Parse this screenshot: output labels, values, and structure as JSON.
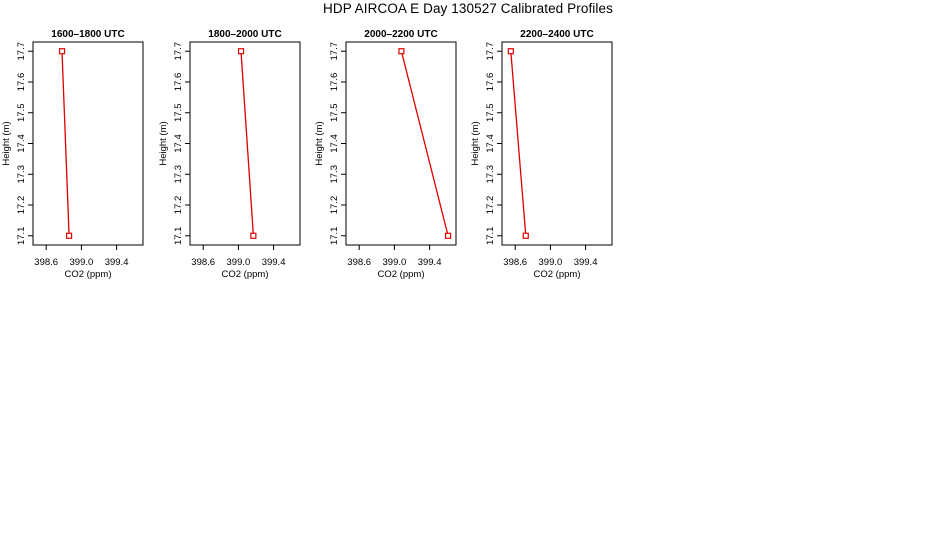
{
  "page": {
    "title": "HDP AIRCOA E  Day 130527  Calibrated Profiles"
  },
  "colors": {
    "series": "#dd0000",
    "axis": "#000000"
  },
  "chart_data": [
    {
      "type": "line",
      "title": "1600–1800 UTC",
      "xlabel": "CO2 (ppm)",
      "ylabel": "Height (m)",
      "xlim": [
        398.45,
        399.7
      ],
      "ylim": [
        17.07,
        17.73
      ],
      "xticks": [
        "398.6",
        "399.0",
        "399.4"
      ],
      "yticks": [
        "17.1",
        "17.2",
        "17.3",
        "17.4",
        "17.5",
        "17.6",
        "17.7"
      ],
      "points": [
        {
          "x": 398.78,
          "y": 17.7
        },
        {
          "x": 398.86,
          "y": 17.1
        }
      ]
    },
    {
      "type": "line",
      "title": "1800–2000 UTC",
      "xlabel": "CO2 (ppm)",
      "ylabel": "Height (m)",
      "xlim": [
        398.45,
        399.7
      ],
      "ylim": [
        17.07,
        17.73
      ],
      "xticks": [
        "398.6",
        "399.0",
        "399.4"
      ],
      "yticks": [
        "17.1",
        "17.2",
        "17.3",
        "17.4",
        "17.5",
        "17.6",
        "17.7"
      ],
      "points": [
        {
          "x": 399.03,
          "y": 17.7
        },
        {
          "x": 399.17,
          "y": 17.1
        }
      ]
    },
    {
      "type": "line",
      "title": "2000–2200 UTC",
      "xlabel": "CO2 (ppm)",
      "ylabel": "Height (m)",
      "xlim": [
        398.45,
        399.7
      ],
      "ylim": [
        17.07,
        17.73
      ],
      "xticks": [
        "398.6",
        "399.0",
        "399.4"
      ],
      "yticks": [
        "17.1",
        "17.2",
        "17.3",
        "17.4",
        "17.5",
        "17.6",
        "17.7"
      ],
      "points": [
        {
          "x": 399.08,
          "y": 17.7
        },
        {
          "x": 399.61,
          "y": 17.1
        }
      ]
    },
    {
      "type": "line",
      "title": "2200–2400 UTC",
      "xlabel": "CO2 (ppm)",
      "ylabel": "Height (m)",
      "xlim": [
        398.45,
        399.7
      ],
      "ylim": [
        17.07,
        17.73
      ],
      "xticks": [
        "398.6",
        "399.0",
        "399.4"
      ],
      "yticks": [
        "17.1",
        "17.2",
        "17.3",
        "17.4",
        "17.5",
        "17.6",
        "17.7"
      ],
      "points": [
        {
          "x": 398.55,
          "y": 17.7
        },
        {
          "x": 398.72,
          "y": 17.1
        }
      ]
    }
  ]
}
